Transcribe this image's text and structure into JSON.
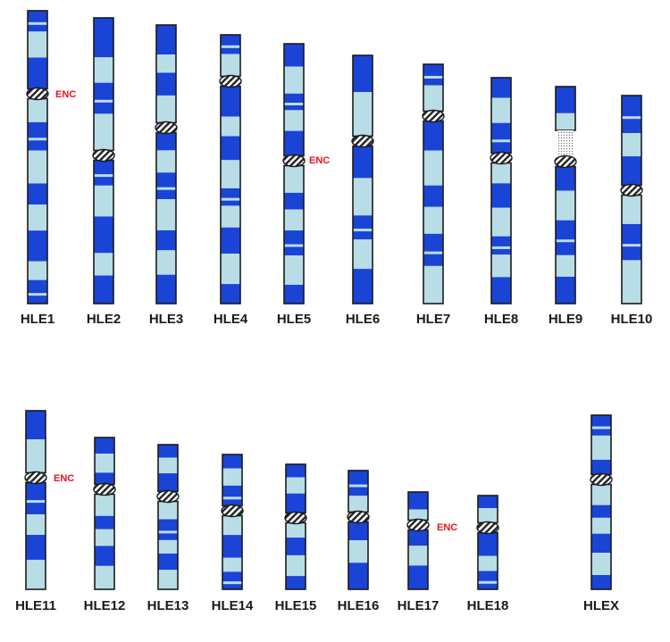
{
  "colors": {
    "dark_band": "#1a44d6",
    "light_band": "#b9dde6",
    "outline": "#1b1b1b",
    "annotation": "#e8141e"
  },
  "annotation_text": "ENC",
  "chromosomes": [
    {
      "name": "HLE1",
      "bands": [
        "d",
        "l",
        "d",
        "l",
        "d",
        "l",
        "d",
        "l",
        "d",
        "l",
        "d"
      ],
      "enc": true
    },
    {
      "name": "HLE2",
      "bands": [
        "d",
        "l",
        "d",
        "l",
        "d",
        "l",
        "d",
        "l",
        "d"
      ],
      "enc": false
    },
    {
      "name": "HLE3",
      "bands": [
        "d",
        "l",
        "d",
        "l",
        "d",
        "l",
        "d",
        "l",
        "d",
        "l",
        "d"
      ],
      "enc": false
    },
    {
      "name": "HLE4",
      "bands": [
        "d",
        "l",
        "d",
        "l",
        "d",
        "l",
        "d",
        "l",
        "d",
        "l",
        "d"
      ],
      "enc": false
    },
    {
      "name": "HLE5",
      "bands": [
        "d",
        "l",
        "d",
        "l",
        "d",
        "l",
        "d",
        "l",
        "d",
        "l",
        "d"
      ],
      "enc": true
    },
    {
      "name": "HLE6",
      "bands": [
        "d",
        "l",
        "d",
        "l",
        "d",
        "l",
        "d"
      ],
      "enc": false
    },
    {
      "name": "HLE7",
      "bands": [
        "d",
        "l",
        "d",
        "l",
        "d",
        "l",
        "d",
        "l"
      ],
      "enc": false
    },
    {
      "name": "HLE8",
      "bands": [
        "d",
        "l",
        "d",
        "l",
        "d",
        "l",
        "d",
        "l",
        "d"
      ],
      "enc": false
    },
    {
      "name": "HLE9",
      "bands": [
        "d",
        "l",
        "d",
        "l",
        "d",
        "l",
        "d"
      ],
      "enc": false
    },
    {
      "name": "HLE10",
      "bands": [
        "d",
        "l",
        "d",
        "l",
        "d",
        "l"
      ],
      "enc": false
    },
    {
      "name": "HLE11",
      "bands": [
        "d",
        "l",
        "d",
        "l",
        "d",
        "l"
      ],
      "enc": true
    },
    {
      "name": "HLE12",
      "bands": [
        "d",
        "l",
        "d",
        "l",
        "d",
        "l",
        "d",
        "l"
      ],
      "enc": false
    },
    {
      "name": "HLE13",
      "bands": [
        "d",
        "l",
        "d",
        "l",
        "d",
        "l",
        "d",
        "l"
      ],
      "enc": false
    },
    {
      "name": "HLE14",
      "bands": [
        "d",
        "l",
        "d",
        "l",
        "d",
        "l",
        "d"
      ],
      "enc": false
    },
    {
      "name": "HLE15",
      "bands": [
        "d",
        "l",
        "d",
        "l",
        "d",
        "l",
        "d"
      ],
      "enc": false
    },
    {
      "name": "HLE16",
      "bands": [
        "d",
        "l",
        "d",
        "l",
        "d"
      ],
      "enc": false
    },
    {
      "name": "HLE17",
      "bands": [
        "d",
        "l",
        "d",
        "l",
        "d"
      ],
      "enc": true
    },
    {
      "name": "HLE18",
      "bands": [
        "d",
        "l",
        "d",
        "l",
        "d"
      ],
      "enc": false
    },
    {
      "name": "HLEX",
      "bands": [
        "d",
        "l",
        "d",
        "l",
        "d",
        "l",
        "d",
        "l",
        "d"
      ],
      "enc": false
    }
  ]
}
